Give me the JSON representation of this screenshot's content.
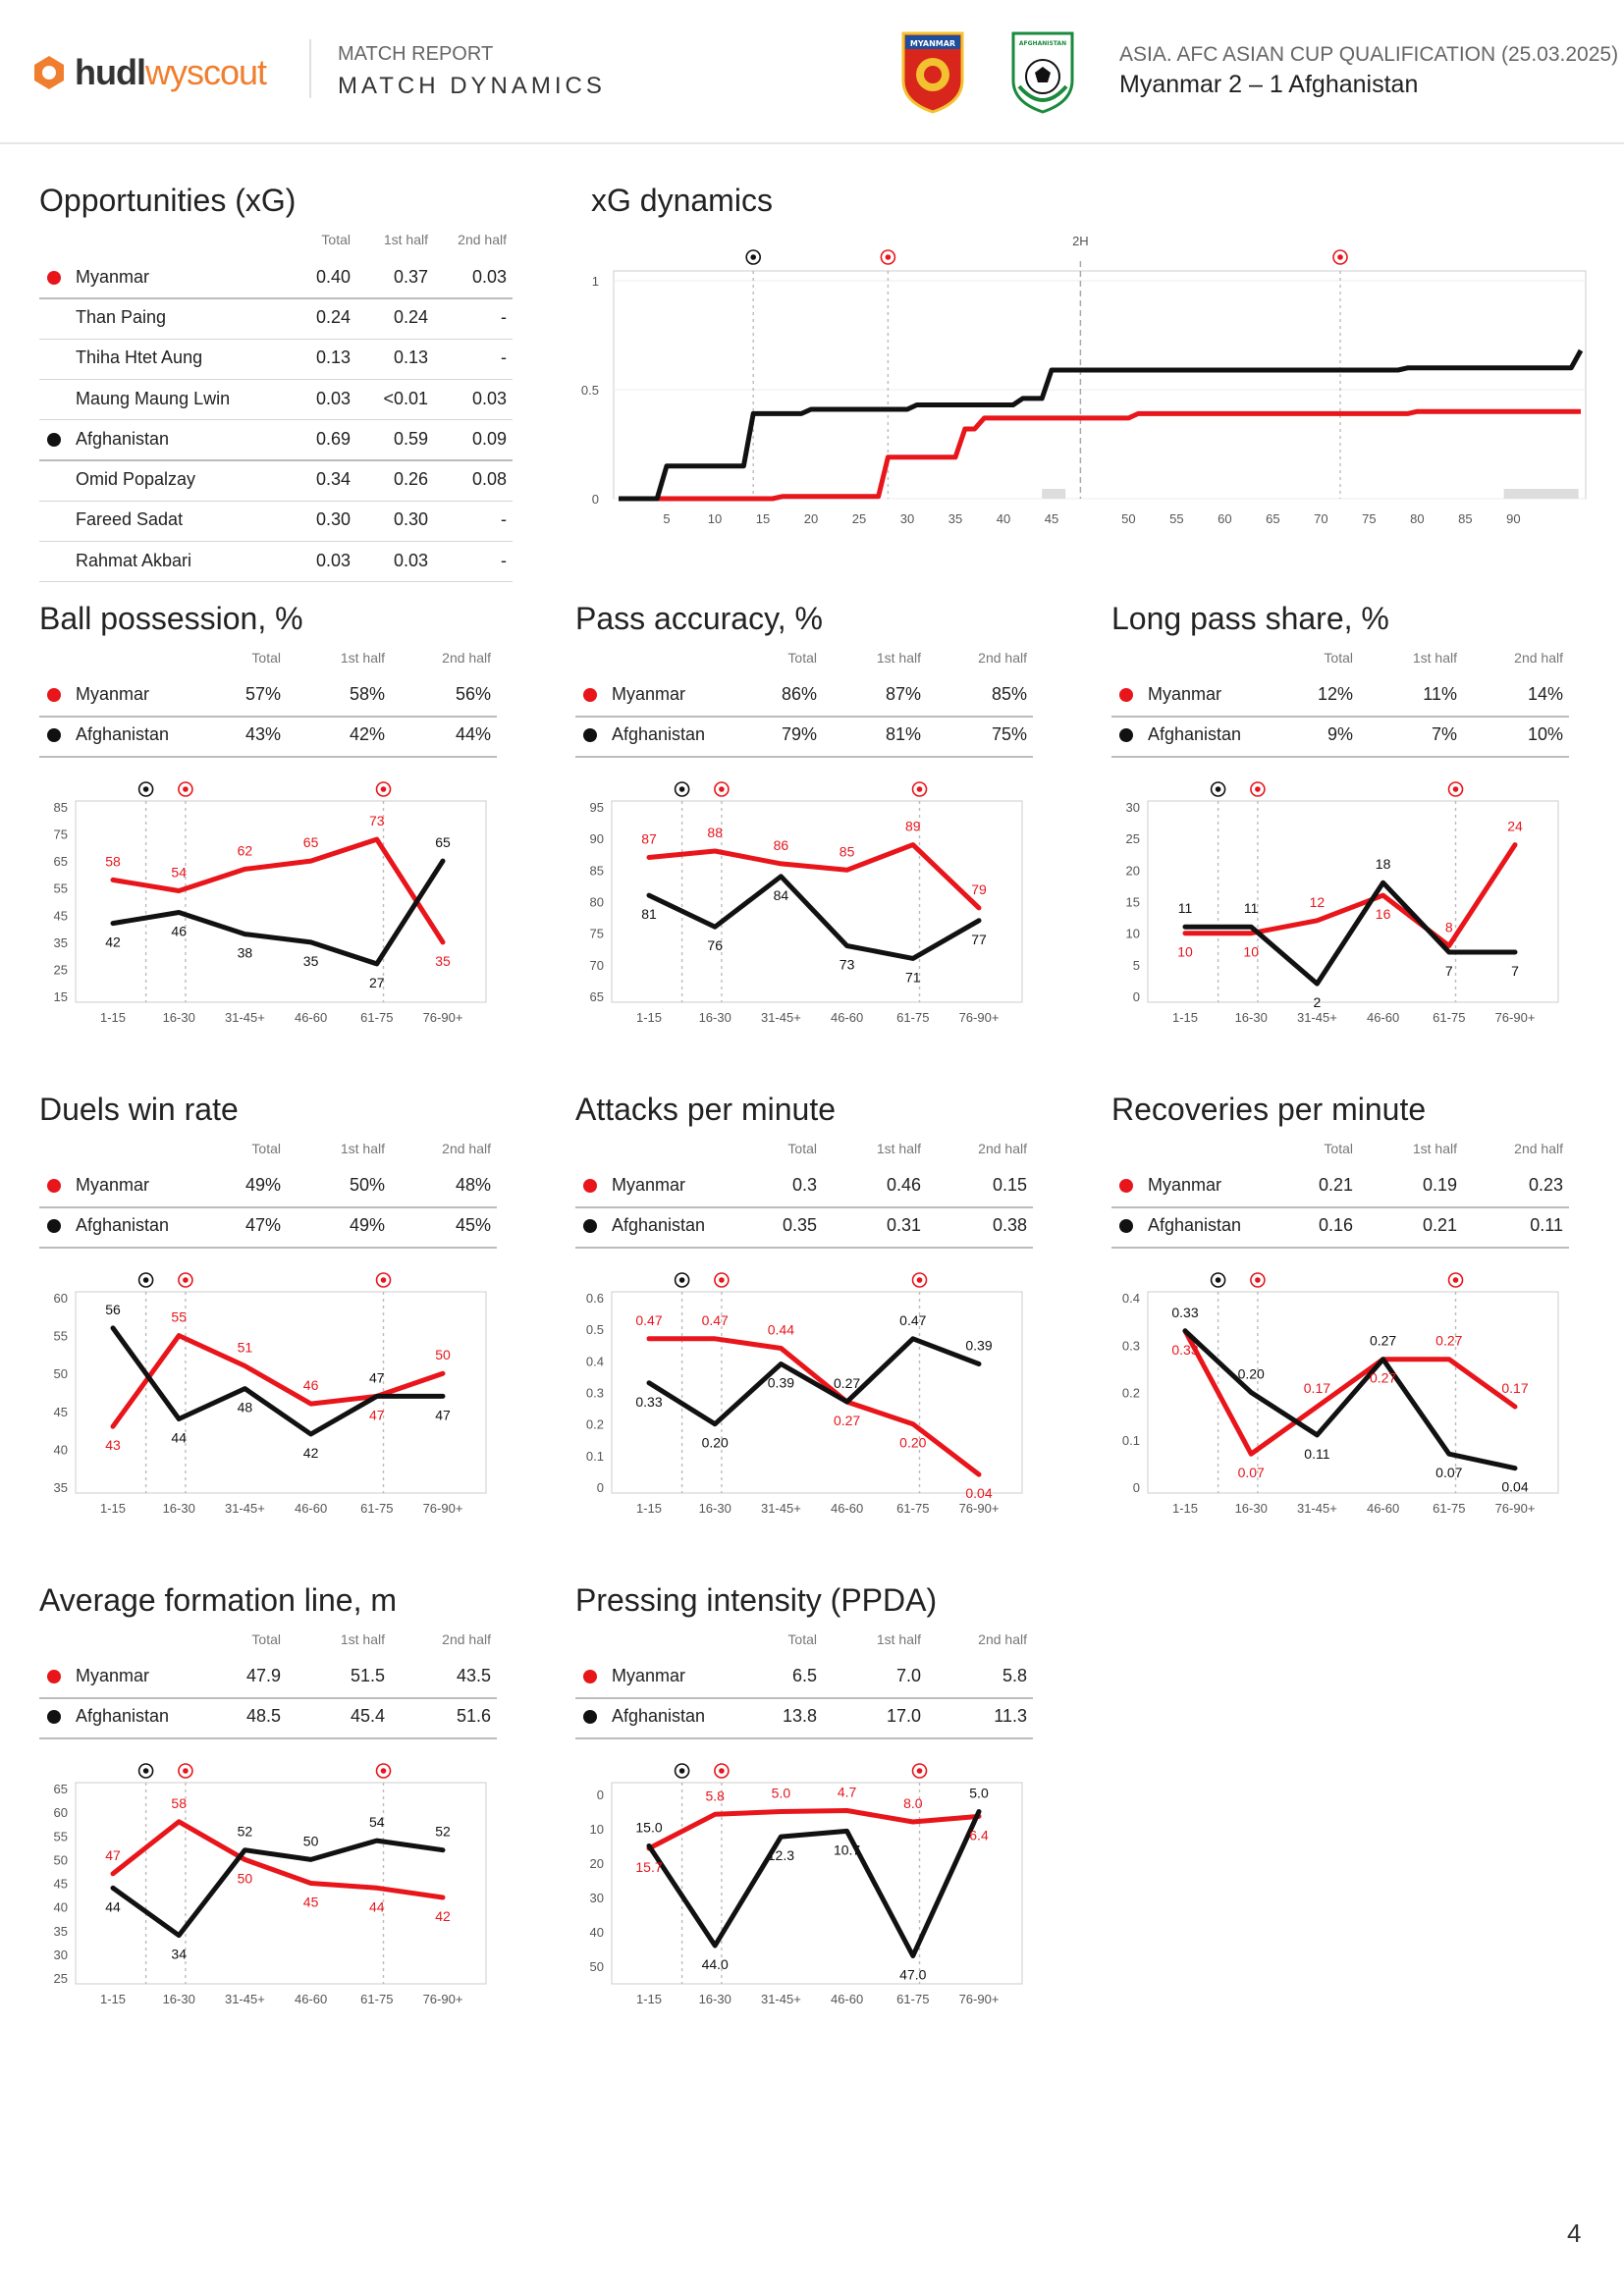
{
  "header": {
    "brand_main": "hudl",
    "brand_sub": "wyscout",
    "report_title": "MATCH REPORT",
    "report_subtitle": "MATCH DYNAMICS",
    "home_crest_text": "MYANMAR",
    "away_crest_text": "AFGHANISTAN",
    "competition": "ASIA. AFC ASIAN CUP QUALIFICATION (25.03.2025)",
    "score_line": "Myanmar 2 – 1 Afghanistan"
  },
  "colors": {
    "myanmar": "#e8151b",
    "afghanistan": "#111111"
  },
  "page_number": "4",
  "xg_table": {
    "title": "Opportunities (xG)",
    "headers": [
      "Total",
      "1st half",
      "2nd half"
    ],
    "rows": [
      {
        "name": "Myanmar",
        "team": "myanmar",
        "total": "0.40",
        "h1": "0.37",
        "h2": "0.03"
      },
      {
        "name": "Than Paing",
        "team": "",
        "total": "0.24",
        "h1": "0.24",
        "h2": "-"
      },
      {
        "name": "Thiha Htet Aung",
        "team": "",
        "total": "0.13",
        "h1": "0.13",
        "h2": "-"
      },
      {
        "name": "Maung Maung Lwin",
        "team": "",
        "total": "0.03",
        "h1": "<0.01",
        "h2": "0.03"
      },
      {
        "name": "Afghanistan",
        "team": "afghanistan",
        "total": "0.69",
        "h1": "0.59",
        "h2": "0.09"
      },
      {
        "name": "Omid Popalzay",
        "team": "",
        "total": "0.34",
        "h1": "0.26",
        "h2": "0.08"
      },
      {
        "name": "Fareed Sadat",
        "team": "",
        "total": "0.30",
        "h1": "0.30",
        "h2": "-"
      },
      {
        "name": "Rahmat Akbari",
        "team": "",
        "total": "0.03",
        "h1": "0.03",
        "h2": "-"
      }
    ]
  },
  "xg_dynamics": {
    "title": "xG dynamics",
    "half_label": "2H",
    "y_ticks": [
      "1",
      "0.5",
      "0"
    ],
    "x_ticks": [
      5,
      10,
      15,
      20,
      25,
      30,
      35,
      40,
      45,
      50,
      55,
      60,
      65,
      70,
      75,
      80,
      85,
      90
    ],
    "goals": [
      {
        "minute": 14,
        "team": "afghanistan"
      },
      {
        "minute": 28,
        "team": "myanmar"
      },
      {
        "minute": 75,
        "team": "myanmar"
      }
    ],
    "afghanistan": [
      [
        0,
        0
      ],
      [
        4,
        0
      ],
      [
        5,
        0.15
      ],
      [
        13,
        0.15
      ],
      [
        14,
        0.39
      ],
      [
        19,
        0.39
      ],
      [
        20,
        0.41
      ],
      [
        30,
        0.41
      ],
      [
        31,
        0.43
      ],
      [
        41,
        0.43
      ],
      [
        42,
        0.46
      ],
      [
        44,
        0.46
      ],
      [
        45,
        0.59
      ],
      [
        81,
        0.59
      ],
      [
        82,
        0.6
      ],
      [
        99,
        0.6
      ],
      [
        100,
        0.68
      ]
    ],
    "myanmar": [
      [
        0,
        0
      ],
      [
        16,
        0
      ],
      [
        17,
        0.01
      ],
      [
        27,
        0.01
      ],
      [
        28,
        0.19
      ],
      [
        35,
        0.19
      ],
      [
        36,
        0.32
      ],
      [
        37,
        0.32
      ],
      [
        38,
        0.37
      ],
      [
        53,
        0.37
      ],
      [
        54,
        0.39
      ],
      [
        82,
        0.39
      ],
      [
        83,
        0.4
      ],
      [
        100,
        0.4
      ]
    ]
  },
  "chart_data": [
    {
      "type": "line",
      "title": "Ball possession, %",
      "categories": [
        "1-15",
        "16-30",
        "31-45+",
        "46-60",
        "61-75",
        "76-90+"
      ],
      "ylim": [
        15,
        85
      ],
      "y_ticks": [
        85,
        75,
        65,
        55,
        45,
        35,
        25,
        15
      ],
      "series": [
        {
          "name": "Myanmar",
          "values": [
            58,
            54,
            62,
            65,
            73,
            35
          ],
          "labels": [
            "58",
            "54",
            "62",
            "65",
            "73",
            "35"
          ]
        },
        {
          "name": "Afghanistan",
          "values": [
            42,
            46,
            38,
            35,
            27,
            65
          ],
          "labels": [
            "42",
            "46",
            "38",
            "35",
            "27",
            "65"
          ]
        }
      ],
      "goals": [
        {
          "between": 0.5,
          "team": "afghanistan"
        },
        {
          "between": 1.1,
          "team": "myanmar"
        },
        {
          "between": 4.1,
          "team": "myanmar"
        }
      ]
    },
    {
      "type": "line",
      "title": "Pass accuracy, %",
      "categories": [
        "1-15",
        "16-30",
        "31-45+",
        "46-60",
        "61-75",
        "76-90+"
      ],
      "ylim": [
        65,
        95
      ],
      "y_ticks": [
        95,
        90,
        85,
        80,
        75,
        70,
        65
      ],
      "series": [
        {
          "name": "Myanmar",
          "values": [
            87,
            88,
            86,
            85,
            89,
            79
          ],
          "labels": [
            "87",
            "88",
            "86",
            "85",
            "89",
            "79"
          ]
        },
        {
          "name": "Afghanistan",
          "values": [
            81,
            76,
            84,
            73,
            71,
            77
          ],
          "labels": [
            "81",
            "76",
            "84",
            "73",
            "71",
            "77"
          ]
        }
      ],
      "goals": [
        {
          "between": 0.5,
          "team": "afghanistan"
        },
        {
          "between": 1.1,
          "team": "myanmar"
        },
        {
          "between": 4.1,
          "team": "myanmar"
        }
      ]
    },
    {
      "type": "line",
      "title": "Long pass share, %",
      "categories": [
        "1-15",
        "16-30",
        "31-45+",
        "46-60",
        "61-75",
        "76-90+"
      ],
      "ylim": [
        0,
        30
      ],
      "y_ticks": [
        30,
        25,
        20,
        15,
        10,
        5,
        0
      ],
      "series": [
        {
          "name": "Myanmar",
          "values": [
            10,
            10,
            12,
            16,
            8,
            24
          ],
          "labels": [
            "10",
            "10",
            "12",
            "16",
            "8",
            "24"
          ]
        },
        {
          "name": "Afghanistan",
          "values": [
            11,
            11,
            2,
            18,
            7,
            7
          ],
          "labels": [
            "11",
            "11",
            "2",
            "18",
            "7",
            "7"
          ]
        }
      ],
      "goals": [
        {
          "between": 0.5,
          "team": "afghanistan"
        },
        {
          "between": 1.1,
          "team": "myanmar"
        },
        {
          "between": 4.1,
          "team": "myanmar"
        }
      ]
    },
    {
      "type": "line",
      "title": "Duels win rate",
      "categories": [
        "1-15",
        "16-30",
        "31-45+",
        "46-60",
        "61-75",
        "76-90+"
      ],
      "ylim": [
        35,
        60
      ],
      "y_ticks": [
        60,
        55,
        50,
        45,
        40,
        35
      ],
      "series": [
        {
          "name": "Myanmar",
          "values": [
            43,
            55,
            51,
            46,
            47,
            50
          ],
          "labels": [
            "43",
            "55",
            "51",
            "46",
            "47",
            "50"
          ]
        },
        {
          "name": "Afghanistan",
          "values": [
            56,
            44,
            48,
            42,
            47,
            47
          ],
          "labels": [
            "56",
            "44",
            "48",
            "42",
            "47",
            "47"
          ]
        }
      ],
      "goals": [
        {
          "between": 0.5,
          "team": "afghanistan"
        },
        {
          "between": 1.1,
          "team": "myanmar"
        },
        {
          "between": 4.1,
          "team": "myanmar"
        }
      ]
    },
    {
      "type": "line",
      "title": "Attacks per minute",
      "categories": [
        "1-15",
        "16-30",
        "31-45+",
        "46-60",
        "61-75",
        "76-90+"
      ],
      "ylim": [
        0,
        0.6
      ],
      "y_ticks": [
        "0.6",
        "0.5",
        "0.4",
        "0.3",
        "0.2",
        "0.1",
        "0"
      ],
      "series": [
        {
          "name": "Myanmar",
          "values": [
            0.47,
            0.47,
            0.44,
            0.27,
            0.2,
            0.04
          ],
          "labels": [
            "0.47",
            "0.47",
            "0.44",
            "0.27",
            "0.20",
            "0.04"
          ]
        },
        {
          "name": "Afghanistan",
          "values": [
            0.33,
            0.2,
            0.39,
            0.27,
            0.47,
            0.39
          ],
          "labels": [
            "0.33",
            "0.20",
            "0.39",
            "0.27",
            "0.47",
            "0.39"
          ]
        }
      ],
      "goals": [
        {
          "between": 0.5,
          "team": "afghanistan"
        },
        {
          "between": 1.1,
          "team": "myanmar"
        },
        {
          "between": 4.1,
          "team": "myanmar"
        }
      ]
    },
    {
      "type": "line",
      "title": "Recoveries per minute",
      "categories": [
        "1-15",
        "16-30",
        "31-45+",
        "46-60",
        "61-75",
        "76-90+"
      ],
      "ylim": [
        0,
        0.4
      ],
      "y_ticks": [
        "0.4",
        "0.3",
        "0.2",
        "0.1",
        "0"
      ],
      "series": [
        {
          "name": "Myanmar",
          "values": [
            0.33,
            0.07,
            0.17,
            0.27,
            0.27,
            0.17
          ],
          "labels": [
            "0.33",
            "0.07",
            "0.17",
            "0.27",
            "0.27",
            "0.17"
          ]
        },
        {
          "name": "Afghanistan",
          "values": [
            0.33,
            0.2,
            0.11,
            0.27,
            0.07,
            0.04
          ],
          "labels": [
            "0.33",
            "0.20",
            "0.11",
            "0.27",
            "0.07",
            "0.04"
          ]
        }
      ],
      "goals": [
        {
          "between": 0.5,
          "team": "afghanistan"
        },
        {
          "between": 1.1,
          "team": "myanmar"
        },
        {
          "between": 4.1,
          "team": "myanmar"
        }
      ]
    },
    {
      "type": "line",
      "title": "Average formation line, m",
      "categories": [
        "1-15",
        "16-30",
        "31-45+",
        "46-60",
        "61-75",
        "76-90+"
      ],
      "ylim": [
        25,
        65
      ],
      "y_ticks": [
        65,
        60,
        55,
        50,
        45,
        40,
        35,
        30,
        25
      ],
      "series": [
        {
          "name": "Myanmar",
          "values": [
            47,
            58,
            50,
            45,
            44,
            42
          ],
          "labels": [
            "47",
            "58",
            "50",
            "45",
            "44",
            "42"
          ]
        },
        {
          "name": "Afghanistan",
          "values": [
            44,
            34,
            52,
            50,
            54,
            52
          ],
          "labels": [
            "44",
            "34",
            "52",
            "50",
            "54",
            "52"
          ]
        }
      ],
      "goals": [
        {
          "between": 0.5,
          "team": "afghanistan"
        },
        {
          "between": 1.1,
          "team": "myanmar"
        },
        {
          "between": 4.1,
          "team": "myanmar"
        }
      ]
    },
    {
      "type": "line",
      "title": "Pressing intensity (PPDA)",
      "y_inverted": true,
      "categories": [
        "1-15",
        "16-30",
        "31-45+",
        "46-60",
        "61-75",
        "76-90+"
      ],
      "ylim": [
        0,
        50
      ],
      "y_ticks": [
        0,
        10,
        20,
        30,
        40,
        50
      ],
      "series": [
        {
          "name": "Myanmar",
          "values": [
            15.7,
            5.8,
            5.0,
            4.7,
            8.0,
            6.4
          ],
          "labels": [
            "15.7",
            "5.8",
            "5.0",
            "4.7",
            "8.0",
            "6.4"
          ]
        },
        {
          "name": "Afghanistan",
          "values": [
            15.0,
            44.0,
            12.3,
            10.7,
            47.0,
            5.0
          ],
          "labels": [
            "15.0",
            "44.0",
            "12.3",
            "10.7",
            "47.0",
            "5.0"
          ]
        }
      ],
      "goals": [
        {
          "between": 0.5,
          "team": "afghanistan"
        },
        {
          "between": 1.1,
          "team": "myanmar"
        },
        {
          "between": 4.1,
          "team": "myanmar"
        }
      ]
    }
  ],
  "stat_tables": [
    {
      "headers": [
        "Total",
        "1st half",
        "2nd half"
      ],
      "rows": [
        {
          "name": "Myanmar",
          "team": "myanmar",
          "total": "57%",
          "h1": "58%",
          "h2": "56%"
        },
        {
          "name": "Afghanistan",
          "team": "afghanistan",
          "total": "43%",
          "h1": "42%",
          "h2": "44%"
        }
      ]
    },
    {
      "headers": [
        "Total",
        "1st half",
        "2nd half"
      ],
      "rows": [
        {
          "name": "Myanmar",
          "team": "myanmar",
          "total": "86%",
          "h1": "87%",
          "h2": "85%"
        },
        {
          "name": "Afghanistan",
          "team": "afghanistan",
          "total": "79%",
          "h1": "81%",
          "h2": "75%"
        }
      ]
    },
    {
      "headers": [
        "Total",
        "1st half",
        "2nd half"
      ],
      "rows": [
        {
          "name": "Myanmar",
          "team": "myanmar",
          "total": "12%",
          "h1": "11%",
          "h2": "14%"
        },
        {
          "name": "Afghanistan",
          "team": "afghanistan",
          "total": "9%",
          "h1": "7%",
          "h2": "10%"
        }
      ]
    },
    {
      "headers": [
        "Total",
        "1st half",
        "2nd half"
      ],
      "rows": [
        {
          "name": "Myanmar",
          "team": "myanmar",
          "total": "49%",
          "h1": "50%",
          "h2": "48%"
        },
        {
          "name": "Afghanistan",
          "team": "afghanistan",
          "total": "47%",
          "h1": "49%",
          "h2": "45%"
        }
      ]
    },
    {
      "headers": [
        "Total",
        "1st half",
        "2nd half"
      ],
      "rows": [
        {
          "name": "Myanmar",
          "team": "myanmar",
          "total": "0.3",
          "h1": "0.46",
          "h2": "0.15"
        },
        {
          "name": "Afghanistan",
          "team": "afghanistan",
          "total": "0.35",
          "h1": "0.31",
          "h2": "0.38"
        }
      ]
    },
    {
      "headers": [
        "Total",
        "1st half",
        "2nd half"
      ],
      "rows": [
        {
          "name": "Myanmar",
          "team": "myanmar",
          "total": "0.21",
          "h1": "0.19",
          "h2": "0.23"
        },
        {
          "name": "Afghanistan",
          "team": "afghanistan",
          "total": "0.16",
          "h1": "0.21",
          "h2": "0.11"
        }
      ]
    },
    {
      "headers": [
        "Total",
        "1st half",
        "2nd half"
      ],
      "rows": [
        {
          "name": "Myanmar",
          "team": "myanmar",
          "total": "47.9",
          "h1": "51.5",
          "h2": "43.5"
        },
        {
          "name": "Afghanistan",
          "team": "afghanistan",
          "total": "48.5",
          "h1": "45.4",
          "h2": "51.6"
        }
      ]
    },
    {
      "headers": [
        "Total",
        "1st half",
        "2nd half"
      ],
      "rows": [
        {
          "name": "Myanmar",
          "team": "myanmar",
          "total": "6.5",
          "h1": "7.0",
          "h2": "5.8"
        },
        {
          "name": "Afghanistan",
          "team": "afghanistan",
          "total": "13.8",
          "h1": "17.0",
          "h2": "11.3"
        }
      ]
    }
  ]
}
